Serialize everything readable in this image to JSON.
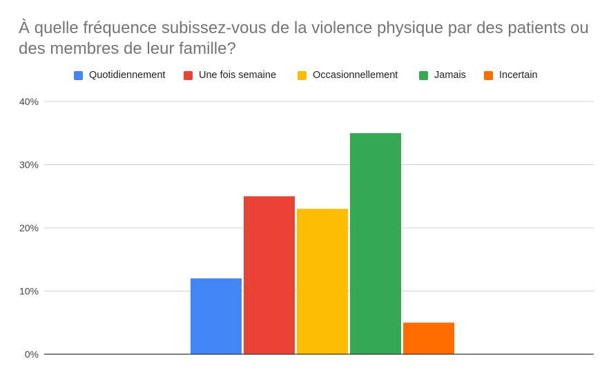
{
  "chart_data": {
    "type": "bar",
    "title": "À quelle fréquence subissez-vous de la violence physique par des patients ou des membres de leur famille?",
    "xlabel": "",
    "ylabel": "",
    "categories": [
      ""
    ],
    "series": [
      {
        "name": "Quotidiennement",
        "values": [
          12
        ],
        "color": "#4285F4"
      },
      {
        "name": "Une fois semaine",
        "values": [
          25
        ],
        "color": "#EA4335"
      },
      {
        "name": "Occasionnellement",
        "values": [
          23
        ],
        "color": "#FBBC04"
      },
      {
        "name": "Jamais",
        "values": [
          35
        ],
        "color": "#34A853"
      },
      {
        "name": "Incertain",
        "values": [
          5
        ],
        "color": "#FF6D01"
      }
    ],
    "ylim": [
      0,
      40
    ],
    "yticks": [
      "0%",
      "10%",
      "20%",
      "30%",
      "40%"
    ],
    "grid": true,
    "legend_position": "top"
  }
}
